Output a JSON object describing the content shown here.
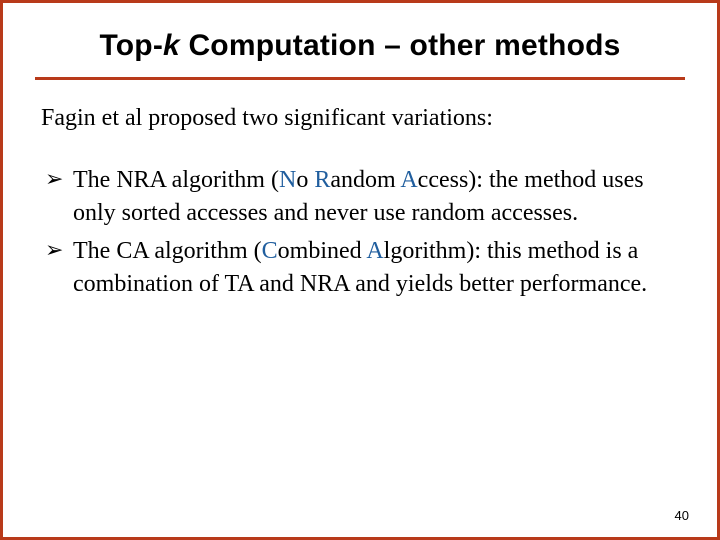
{
  "colors": {
    "border": "#b83a1a",
    "initial": "#205e9e",
    "text": "#000000",
    "background": "#ffffff"
  },
  "title": {
    "pre": "Top-",
    "italic": "k",
    "post": " Computation – other methods"
  },
  "intro": "Fagin et al proposed two significant variations:",
  "bullets": [
    {
      "pre": "The NRA algorithm (",
      "i1": "N",
      "mid1": "o ",
      "i2": "R",
      "mid2": "andom ",
      "i3": "A",
      "mid3": "ccess): the method uses only sorted accesses and never use random accesses."
    },
    {
      "pre": "The CA algorithm (",
      "i1": "C",
      "mid1": "ombined ",
      "i2": "A",
      "mid2": "lgorithm): this method is a combination of TA and NRA and yields better performance.",
      "i3": "",
      "mid3": ""
    }
  ],
  "pagenum": "40"
}
